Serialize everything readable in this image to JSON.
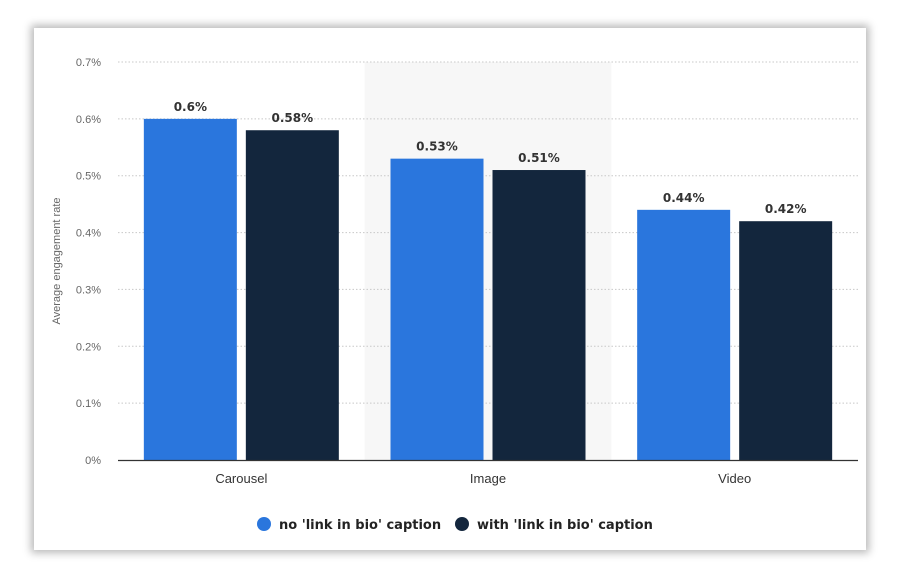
{
  "chart_data": {
    "type": "bar",
    "title": "",
    "xlabel": "",
    "ylabel": "Average engagement rate",
    "categories": [
      "Carousel",
      "Image",
      "Video"
    ],
    "series": [
      {
        "name": "no 'link in bio' caption",
        "values": [
          0.6,
          0.53,
          0.44
        ],
        "labels": [
          "0.6%",
          "0.53%",
          "0.44%"
        ],
        "color": "#2a76dd"
      },
      {
        "name": "with 'link in bio' caption",
        "values": [
          0.58,
          0.51,
          0.42
        ],
        "labels": [
          "0.58%",
          "0.51%",
          "0.42%"
        ],
        "color": "#13263d"
      }
    ],
    "ylim": [
      0,
      0.7
    ],
    "yticks": [
      0,
      0.1,
      0.2,
      0.3,
      0.4,
      0.5,
      0.6,
      0.7
    ],
    "ytick_labels": [
      "0%",
      "0.1%",
      "0.2%",
      "0.3%",
      "0.4%",
      "0.5%",
      "0.6%",
      "0.7%"
    ],
    "grid": true,
    "legend_position": "bottom-center",
    "highlighted_category": "Image"
  }
}
